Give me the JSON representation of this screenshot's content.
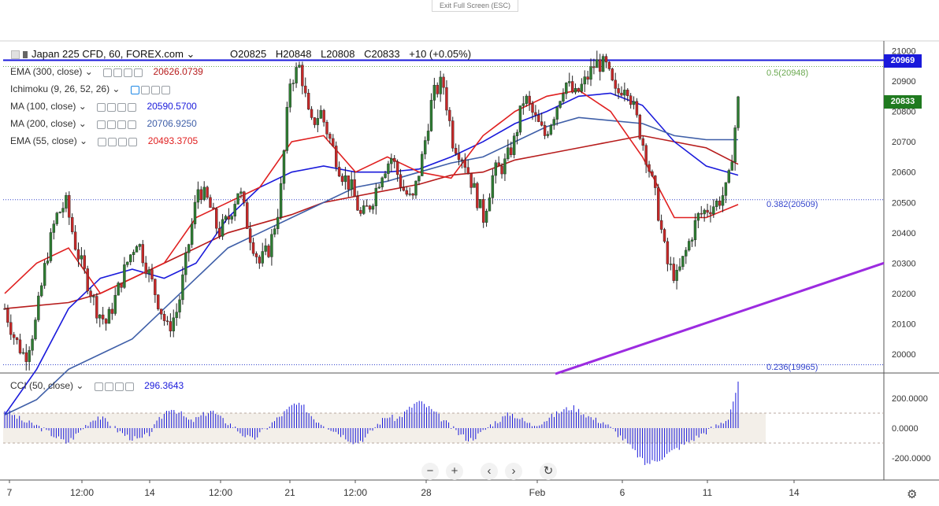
{
  "toolbar": {
    "exit_fullscreen": "Exit Full Screen (ESC)"
  },
  "header": {
    "symbol": "Japan 225 CFD, 60, FOREX.com",
    "open": "O20825",
    "high": "H20848",
    "low": "L20808",
    "close": "C20833",
    "change": "+10 (+0.05%)"
  },
  "indicators": [
    {
      "label": "EMA (300, close)",
      "value": "20626.0739",
      "color": "#b71c1c"
    },
    {
      "label": "Ichimoku (9, 26, 52, 26)",
      "value": "",
      "color": "#1e88e5"
    },
    {
      "label": "MA (100, close)",
      "value": "20590.5700",
      "color": "#1a1adb"
    },
    {
      "label": "MA (200, close)",
      "value": "20706.9250",
      "color": "#3f5fa8"
    },
    {
      "label": "EMA (55, close)",
      "value": "20493.3705",
      "color": "#e02020"
    }
  ],
  "cci": {
    "label": "CCI (50, close)",
    "value": "296.3643",
    "ticks": [
      "200.0000",
      "0.0000",
      "-200.0000"
    ]
  },
  "price_axis": {
    "ticks": [
      "21000",
      "20900",
      "20800",
      "20700",
      "20600",
      "20500",
      "20400",
      "20300",
      "20200",
      "20100",
      "20000"
    ]
  },
  "badges": {
    "resistance": "20969",
    "last": "20833"
  },
  "fib_levels": [
    {
      "label": "0.5(20948)",
      "price": 20948,
      "color": "#6aa84f"
    },
    {
      "label": "0.382(20509)",
      "price": 20509,
      "color": "#3344cc"
    },
    {
      "label": "0.236(19965)",
      "price": 19965,
      "color": "#3344cc"
    }
  ],
  "time_axis": {
    "labels": [
      "7",
      "12:00",
      "14",
      "12:00",
      "21",
      "12:00",
      "28",
      "Feb",
      "6",
      "11",
      "14"
    ]
  },
  "nav": {
    "zoom_out": "−",
    "zoom_in": "+",
    "back": "‹",
    "forward": "›",
    "reset": "↻"
  },
  "chart_data": {
    "type": "line",
    "title": "Japan 225 CFD, 60, FOREX.com",
    "ylim": [
      19940,
      21040
    ],
    "resistance": 20969,
    "trendline": [
      {
        "x": "Feb 1",
        "y": 19935
      },
      {
        "x": "Feb 12+",
        "y": 20300
      }
    ],
    "price_path": [
      20150,
      20050,
      19990,
      20100,
      20300,
      20450,
      20500,
      20350,
      20250,
      20150,
      20100,
      20200,
      20300,
      20380,
      20280,
      20180,
      20080,
      20150,
      20350,
      20550,
      20500,
      20400,
      20450,
      20550,
      20400,
      20300,
      20350,
      20500,
      20900,
      20950,
      20750,
      20800,
      20700,
      20600,
      20550,
      20450,
      20500,
      20600,
      20650,
      20550,
      20500,
      20650,
      20850,
      20900,
      20700,
      20650,
      20550,
      20450,
      20600,
      20620,
      20700,
      20850,
      20780,
      20720,
      20800,
      20900,
      20850,
      20900,
      20960,
      20950,
      20850,
      20900,
      20780,
      20650,
      20500,
      20300,
      20250,
      20350,
      20450,
      20480,
      20500,
      20550,
      20833
    ],
    "series": [
      {
        "name": "EMA (300, close)",
        "color": "#b71c1c",
        "path": [
          20150,
          20160,
          20170,
          20200,
          20250,
          20300,
          20350,
          20400,
          20430,
          20460,
          20500,
          20520,
          20540,
          20560,
          20590,
          20600,
          20640,
          20660,
          20680,
          20700,
          20720,
          20700,
          20680,
          20626
        ]
      },
      {
        "name": "MA (100, close)",
        "color": "#1a1adb",
        "path": [
          19800,
          19950,
          20150,
          20250,
          20280,
          20250,
          20300,
          20450,
          20550,
          20600,
          20620,
          20600,
          20600,
          20610,
          20650,
          20700,
          20760,
          20800,
          20850,
          20860,
          20820,
          20700,
          20620,
          20590
        ]
      },
      {
        "name": "MA (200, close)",
        "color": "#3f5fa8",
        "path": [
          19800,
          19850,
          19950,
          20000,
          20050,
          20150,
          20250,
          20350,
          20400,
          20450,
          20500,
          20550,
          20570,
          20600,
          20630,
          20650,
          20700,
          20750,
          20780,
          20770,
          20760,
          20720,
          20707,
          20707
        ]
      },
      {
        "name": "EMA (55, close)",
        "color": "#e02020",
        "path": [
          20200,
          20300,
          20350,
          20200,
          20250,
          20300,
          20450,
          20500,
          20550,
          20700,
          20720,
          20600,
          20650,
          20600,
          20580,
          20720,
          20800,
          20850,
          20870,
          20800,
          20650,
          20450,
          20450,
          20493
        ]
      }
    ],
    "cci_values": [
      120,
      80,
      40,
      20,
      -20,
      -60,
      -100,
      -40,
      30,
      80,
      40,
      -20,
      -60,
      -80,
      -40,
      60,
      140,
      100,
      40,
      80,
      120,
      60,
      20,
      -40,
      -80,
      -20,
      40,
      100,
      160,
      140,
      60,
      20,
      -20,
      -60,
      -100,
      -60,
      20,
      80,
      60,
      120,
      180,
      140,
      80,
      20,
      -40,
      -80,
      -40,
      20,
      60,
      100,
      60,
      20,
      40,
      80,
      120,
      140,
      100,
      60,
      40,
      -20,
      -80,
      -160,
      -240,
      -220,
      -180,
      -140,
      -100,
      -60,
      -20,
      20,
      60,
      296
    ]
  }
}
